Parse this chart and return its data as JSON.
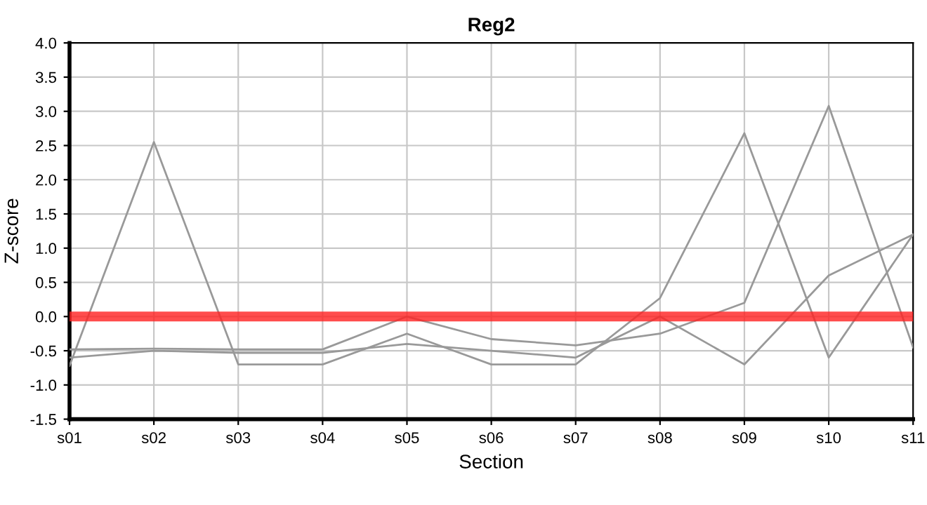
{
  "chart_data": {
    "type": "line",
    "title": "Reg2",
    "xlabel": "Section",
    "ylabel": "Z-score",
    "categories": [
      "s01",
      "s02",
      "s03",
      "s04",
      "s05",
      "s06",
      "s07",
      "s08",
      "s09",
      "s10",
      "s11"
    ],
    "series": [
      {
        "color": "#999999",
        "values": [
          -0.72,
          2.55,
          -0.7,
          -0.7,
          -0.25,
          -0.7,
          -0.7,
          0.27,
          2.68,
          -0.6,
          1.2
        ]
      },
      {
        "color": "#999999",
        "values": [
          -0.6,
          -0.5,
          -0.53,
          -0.53,
          -0.4,
          -0.5,
          -0.6,
          0.0,
          -0.7,
          0.6,
          1.2
        ]
      },
      {
        "color": "#999999",
        "values": [
          -0.48,
          -0.47,
          -0.48,
          -0.48,
          0.0,
          -0.33,
          -0.42,
          -0.25,
          0.2,
          3.08,
          -0.45
        ]
      }
    ],
    "ylim": [
      -1.5,
      4.0
    ],
    "yticks": [
      {
        "value": -1.5,
        "label": "-1.5"
      },
      {
        "value": -1.0,
        "label": "-1.0"
      },
      {
        "value": -0.5,
        "label": "-0.5"
      },
      {
        "value": 0.0,
        "label": "0.0"
      },
      {
        "value": 0.5,
        "label": "0.5"
      },
      {
        "value": 1.0,
        "label": "1.0"
      },
      {
        "value": 1.5,
        "label": "1.5"
      },
      {
        "value": 2.0,
        "label": "2.0"
      },
      {
        "value": 2.5,
        "label": "2.5"
      },
      {
        "value": 3.0,
        "label": "3.0"
      },
      {
        "value": 3.5,
        "label": "3.5"
      },
      {
        "value": 4.0,
        "label": "4.0"
      }
    ],
    "ref_lines": [
      {
        "axis": "y",
        "value": 0,
        "label": null,
        "color": "#ff2020"
      }
    ],
    "grid": true,
    "marker": "none",
    "line_style": "solid"
  }
}
